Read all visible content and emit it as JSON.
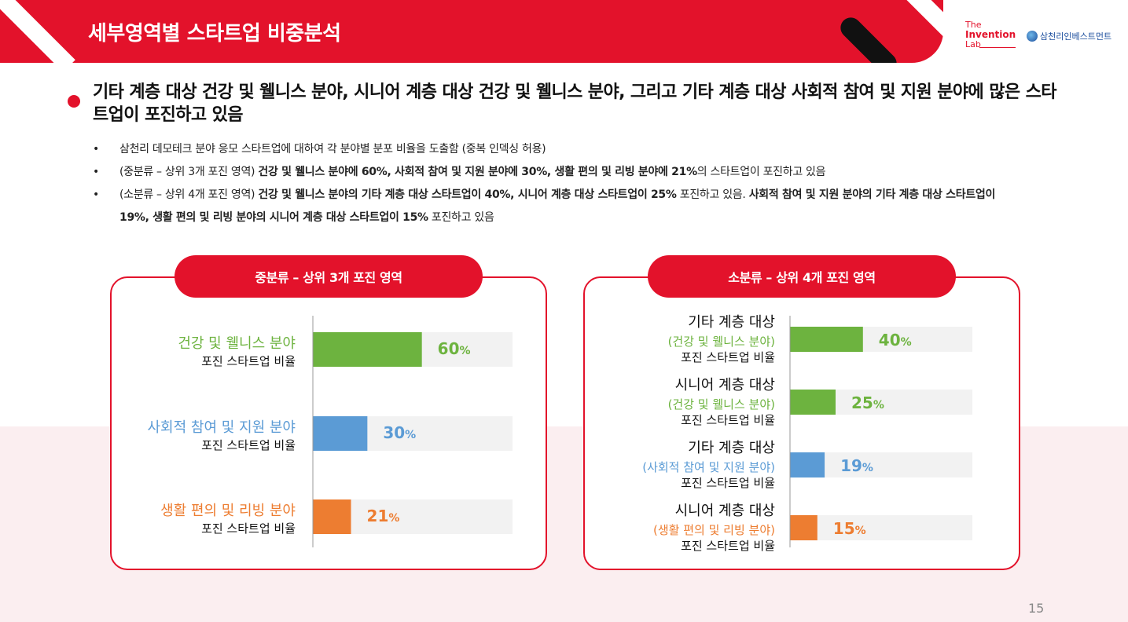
{
  "header": {
    "title": "세부영역별 스타트업 비중분석",
    "logo_invention_1": "The",
    "logo_invention_2": "Invention",
    "logo_invention_3": "Lab",
    "logo_partner": "삼천리인베스트먼트"
  },
  "headline": "기타 계층 대상 건강 및 웰니스 분야, 시니어 계층 대상 건강 및 웰니스 분야, 그리고 기타 계층 대상 사회적 참여 및 지원 분야에 많은 스타트업이 포진하고 있음",
  "notes": {
    "n1": "삼천리 데모테크 분야 응모 스타트업에 대하여 각 분야별 분포 비율을 도출함 (중복 인덱싱 허용)",
    "n2_pre": "(중분류 – 상위 3개 포진 영역) ",
    "n2_bold": "건강 및 웰니스 분야에 60%, 사회적 참여 및 지원 분야에 30%, 생활 편의 및 리빙 분야에 21%",
    "n2_post": "의 스타트업이 포진하고 있음",
    "n3_pre": "(소분류 – 상위 4개 포진 영역) ",
    "n3_bold1": "건강 및 웰니스 분야의 기타 계층 대상 스타트업이 40%, 시니어 계층 대상 스타트업이 25%",
    "n3_mid": " 포진하고 있음. ",
    "n3_bold2": "사회적 참여 및 지원 분야의 기타 계층 대상 스타트업이 19%, 생활 편의 및 리빙 분야의 시니어 계층 대상 스타트업이 15%",
    "n3_post": " 포진하고 있음"
  },
  "page_number": "15",
  "colors": {
    "brand_red": "#e3122b",
    "green": "#6db33f",
    "blue": "#5b9bd5",
    "orange": "#ed7d31",
    "track": "#f2f2f2"
  },
  "chart_data": [
    {
      "type": "bar",
      "title": "중분류 – 상위 3개 포진 영역",
      "ylim": [
        0,
        100
      ],
      "categories": [
        {
          "name": "건강 및 웰니스 분야",
          "sub": "포진 스타트업 비율",
          "color": "#6db33f"
        },
        {
          "name": "사회적 참여 및 지원 분야",
          "sub": "포진 스타트업 비율",
          "color": "#5b9bd5"
        },
        {
          "name": "생활 편의 및 리빙 분야",
          "sub": "포진 스타트업 비율",
          "color": "#ed7d31"
        }
      ],
      "values": [
        60,
        30,
        21
      ],
      "value_labels": [
        "60",
        "30",
        "21"
      ],
      "unit": "%"
    },
    {
      "type": "bar",
      "title": "소분류 – 상위 4개 포진 영역",
      "ylim": [
        0,
        100
      ],
      "categories": [
        {
          "name": "기타 계층 대상",
          "field": "(건강 및 웰니스 분야)",
          "sub": "포진 스타트업 비율",
          "color": "#6db33f"
        },
        {
          "name": "시니어 계층 대상",
          "field": "(건강 및 웰니스 분야)",
          "sub": "포진 스타트업 비율",
          "color": "#6db33f"
        },
        {
          "name": "기타 계층 대상",
          "field": "(사회적 참여 및 지원 분야)",
          "sub": "포진 스타트업 비율",
          "color": "#5b9bd5"
        },
        {
          "name": "시니어 계층 대상",
          "field": "(생활 편의 및 리빙 분야)",
          "sub": "포진 스타트업 비율",
          "color": "#ed7d31"
        }
      ],
      "values": [
        40,
        25,
        19,
        15
      ],
      "value_labels": [
        "40",
        "25",
        "19",
        "15"
      ],
      "unit": "%"
    }
  ]
}
